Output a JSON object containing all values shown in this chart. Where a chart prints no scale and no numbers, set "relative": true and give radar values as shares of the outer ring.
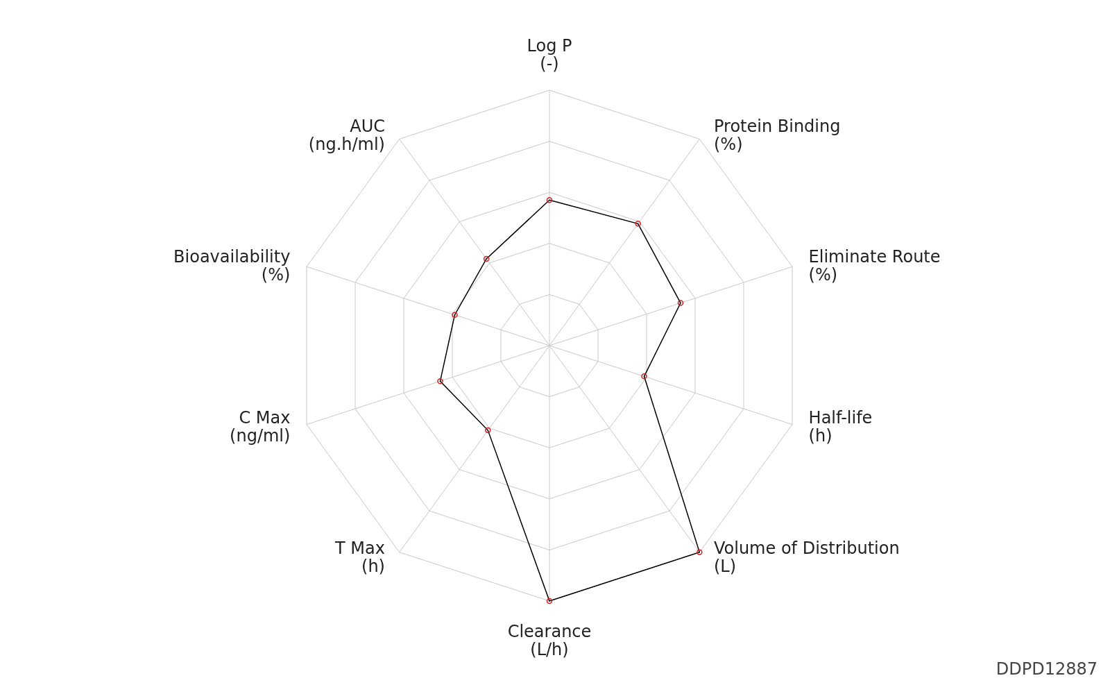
{
  "chart_data": {
    "type": "radar",
    "relative": true,
    "categories": [
      "Log P\n(-)",
      "Protein Binding\n(%)",
      "Eliminate Route\n(%)",
      "Half-life\n(h)",
      "Volume of Distribution\n(L)",
      "Clearance\n(L/h)",
      "T Max\n(h)",
      "C Max\n(ng/ml)",
      "Bioavailability\n(%)",
      "AUC\n(ng.h/ml)"
    ],
    "series": [
      {
        "color": "#000000",
        "values": [
          0.57,
          0.59,
          0.54,
          0.39,
          1,
          1,
          0.41,
          0.45,
          0.39,
          0.42
        ]
      }
    ],
    "marker": "circle",
    "annotations": [
      "DDPD12887"
    ]
  }
}
